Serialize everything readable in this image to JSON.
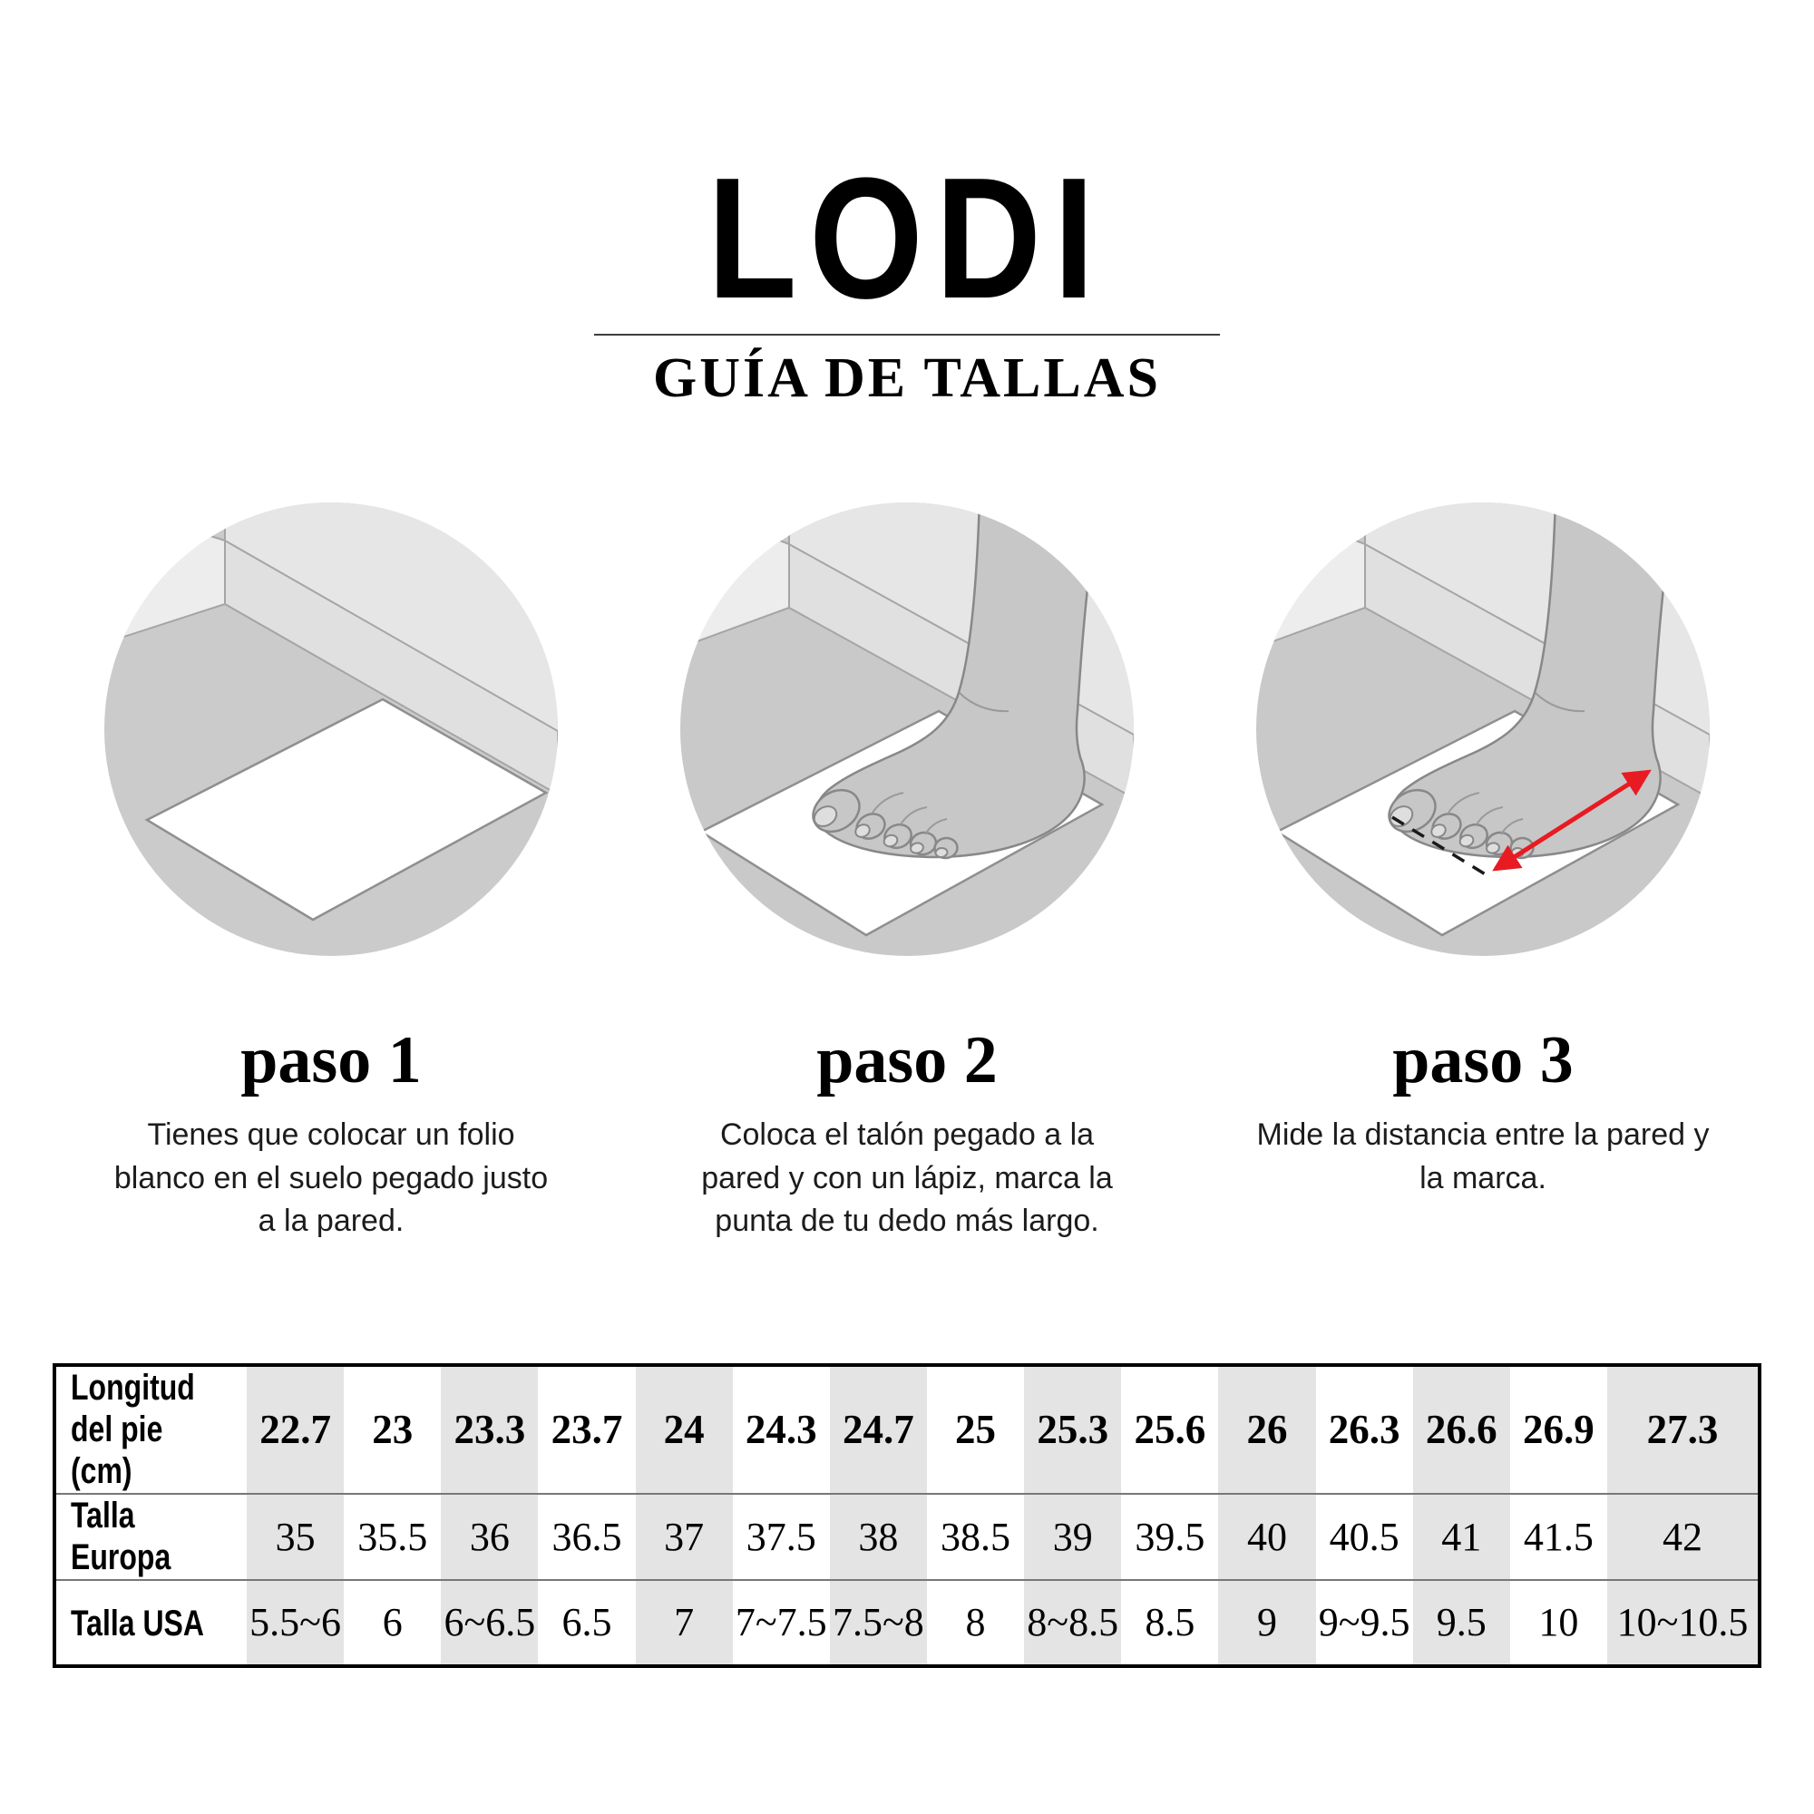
{
  "header": {
    "brand": "LODI",
    "subtitle": "GUÍA DE TALLAS"
  },
  "steps": [
    {
      "title": "paso 1",
      "description": "Tienes que colocar un folio\nblanco en el suelo pegado justo\na la pared.",
      "illustration": "white-paper-on-floor-against-wall"
    },
    {
      "title": "paso 2",
      "description": "Coloca el talón pegado a la\npared y con un lápiz, marca la\npunta de tu dedo más largo.",
      "illustration": "foot-on-paper-heel-against-wall"
    },
    {
      "title": "paso 3",
      "description": "Mide la distancia entre la pared y\nla marca.",
      "illustration": "foot-on-paper-red-measuring-arrow"
    }
  ],
  "size_table": {
    "row_labels": [
      "Longitud\ndel pie (cm)",
      "Talla Europa",
      "Talla USA"
    ],
    "foot_length_cm": [
      "22.7",
      "23",
      "23.3",
      "23.7",
      "24",
      "24.3",
      "24.7",
      "25",
      "25.3",
      "25.6",
      "26",
      "26.3",
      "26.6",
      "26.9",
      "27.3"
    ],
    "talla_europa": [
      "35",
      "35.5",
      "36",
      "36.5",
      "37",
      "37.5",
      "38",
      "38.5",
      "39",
      "39.5",
      "40",
      "40.5",
      "41",
      "41.5",
      "42"
    ],
    "talla_usa": [
      "5.5~6",
      "6",
      "6~6.5",
      "6.5",
      "7",
      "7~7.5",
      "7.5~8",
      "8",
      "8~8.5",
      "8.5",
      "9",
      "9~9.5",
      "9.5",
      "10",
      "10~10.5"
    ]
  },
  "colors": {
    "accent_red": "#e81b23",
    "table_stripe": "#e4e4e4",
    "text": "#000000"
  }
}
